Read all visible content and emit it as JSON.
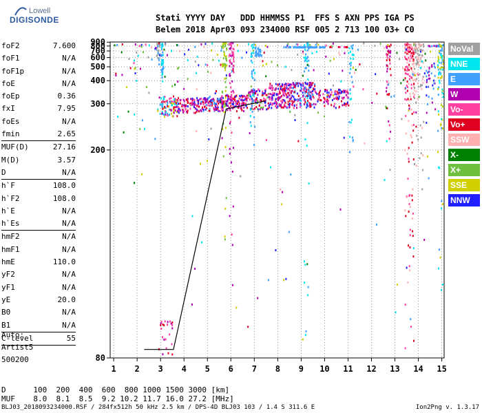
{
  "logo": {
    "line1": "Lowell",
    "line2": "DIGISONDE"
  },
  "header": {
    "line1": "Stati YYYY DAY   DDD HHMMSS P1  FFS S AXN PPS IGA PS",
    "line2": "Belem 2018 Apr03 093 234000 RSF 005 2 713 100 03+ C0"
  },
  "params_group1": [
    {
      "name": "foF2",
      "value": "7.600"
    },
    {
      "name": "foF1",
      "value": "N/A"
    },
    {
      "name": "foF1p",
      "value": "N/A"
    },
    {
      "name": "foE",
      "value": "N/A"
    },
    {
      "name": "foEp",
      "value": "0.36"
    },
    {
      "name": "fxI",
      "value": "7.95"
    },
    {
      "name": "foEs",
      "value": "N/A"
    },
    {
      "name": "fmin",
      "value": "2.65"
    }
  ],
  "params_group2": [
    {
      "name": "MUF(D)",
      "value": "27.16"
    },
    {
      "name": "M(D)",
      "value": "3.57"
    },
    {
      "name": "D",
      "value": "N/A"
    }
  ],
  "params_group3": [
    {
      "name": "h`F",
      "value": "108.0"
    },
    {
      "name": "h`F2",
      "value": "108.0"
    },
    {
      "name": "h`E",
      "value": "N/A"
    },
    {
      "name": "h`Es",
      "value": "N/A"
    }
  ],
  "params_group4": [
    {
      "name": "hmF2",
      "value": "N/A"
    },
    {
      "name": "hmF1",
      "value": "N/A"
    },
    {
      "name": "hmE",
      "value": "110.0"
    },
    {
      "name": "yF2",
      "value": "N/A"
    },
    {
      "name": "yF1",
      "value": "N/A"
    },
    {
      "name": "yE",
      "value": "20.0"
    },
    {
      "name": "B0",
      "value": "N/A"
    },
    {
      "name": "B1",
      "value": "N/A"
    }
  ],
  "params_group5": [
    {
      "name": "C-level",
      "value": "55"
    }
  ],
  "auto": {
    "l1": "Auto:",
    "l2": "Artist5",
    "l3": "500200"
  },
  "footer": {
    "d_line": "D      100  200  400  600  800 1000 1500 3000 [km]",
    "muf_line": "MUF    8.0  8.1  8.5  9.2 10.2 11.7 16.0 27.2 [MHz]"
  },
  "bottom_line": "BLJ03_2018093234000.RSF / 284fx512h 50 kHz 2.5 km / DPS-4D BLJ03 103 / 1.4 S 311.6 E",
  "version": "Ion2Png v. 1.3.17",
  "legend": [
    {
      "label": "NoVal",
      "color": "#a0a0a0"
    },
    {
      "label": "NNE",
      "color": "#00e5ee"
    },
    {
      "label": "E",
      "color": "#3fa0ff"
    },
    {
      "label": "W",
      "color": "#b000b0"
    },
    {
      "label": "Vo-",
      "color": "#ff40a0"
    },
    {
      "label": "Vo+",
      "color": "#e00020"
    },
    {
      "label": "SSW",
      "color": "#ffb0b0"
    },
    {
      "label": "X-",
      "color": "#008000"
    },
    {
      "label": "X+",
      "color": "#70c040"
    },
    {
      "label": "SSE",
      "color": "#d0d000"
    },
    {
      "label": "NNW",
      "color": "#2020ff"
    }
  ],
  "chart_data": {
    "type": "scatter",
    "x_ticks": [
      1,
      2,
      3,
      4,
      5,
      6,
      7,
      8,
      9,
      10,
      11,
      12,
      13,
      14,
      15
    ],
    "y_ticks": [
      80,
      200,
      300,
      400,
      500,
      600,
      700,
      800,
      900
    ],
    "xlim": [
      0.85,
      15.1
    ],
    "ylim": [
      80,
      905
    ],
    "y_scale": "reciprocal",
    "grid": true,
    "trace": {
      "x": [
        2.3,
        3.55,
        5.8,
        7.5
      ],
      "y": [
        82,
        82,
        284,
        310
      ]
    },
    "clusters": [
      {
        "x0": 2.85,
        "x1": 3.7,
        "y0": 265,
        "y1": 330,
        "n": 90,
        "color_set": [
          3,
          4,
          5,
          9,
          1,
          2
        ]
      },
      {
        "x0": 3.7,
        "x1": 4.6,
        "y0": 275,
        "y1": 325,
        "n": 80,
        "color_set": [
          3,
          4,
          5,
          10
        ]
      },
      {
        "x0": 4.6,
        "x1": 5.5,
        "y0": 280,
        "y1": 325,
        "n": 90,
        "color_set": [
          3,
          4,
          5,
          10,
          2
        ]
      },
      {
        "x0": 5.5,
        "x1": 6.7,
        "y0": 280,
        "y1": 335,
        "n": 130,
        "color_set": [
          3,
          4,
          5,
          10
        ]
      },
      {
        "x0": 6.7,
        "x1": 7.6,
        "y0": 285,
        "y1": 360,
        "n": 90,
        "color_set": [
          3,
          4,
          5,
          10,
          8
        ]
      },
      {
        "x0": 7.6,
        "x1": 8.6,
        "y0": 290,
        "y1": 390,
        "n": 160,
        "color_set": [
          3,
          4,
          5,
          10
        ]
      },
      {
        "x0": 8.6,
        "x1": 9.6,
        "y0": 290,
        "y1": 395,
        "n": 150,
        "color_set": [
          3,
          4,
          5,
          10,
          2
        ]
      },
      {
        "x0": 9.6,
        "x1": 11.0,
        "y0": 290,
        "y1": 360,
        "n": 100,
        "color_set": [
          3,
          4,
          5,
          10
        ]
      },
      {
        "x0": 2.9,
        "x1": 3.5,
        "y0": 80,
        "y1": 90,
        "n": 25,
        "color_set": [
          4,
          5,
          3
        ]
      },
      {
        "x0": 8.2,
        "x1": 10.0,
        "y0": 788,
        "y1": 800,
        "n": 70,
        "color_set": [
          2
        ]
      },
      {
        "x0": 14.4,
        "x1": 15.1,
        "y0": 815,
        "y1": 830,
        "n": 25,
        "color_set": [
          2,
          3
        ]
      },
      {
        "x0": 10.2,
        "x1": 11.0,
        "y0": 795,
        "y1": 802,
        "n": 15,
        "color_set": [
          5,
          4
        ]
      },
      {
        "x0": 3.0,
        "x1": 3.1,
        "y0": 400,
        "y1": 890,
        "n": 40,
        "color_set": [
          1,
          2
        ]
      },
      {
        "x0": 2.8,
        "x1": 2.95,
        "y0": 500,
        "y1": 895,
        "n": 25,
        "color_set": [
          2,
          0
        ]
      },
      {
        "x0": 5.9,
        "x1": 6.1,
        "y0": 100,
        "y1": 900,
        "n": 70,
        "color_set": [
          3,
          4
        ]
      },
      {
        "x0": 5.6,
        "x1": 5.8,
        "y0": 100,
        "y1": 900,
        "n": 60,
        "color_set": [
          9,
          8
        ]
      },
      {
        "x0": 6.8,
        "x1": 7.0,
        "y0": 200,
        "y1": 900,
        "n": 40,
        "color_set": [
          1,
          2
        ]
      },
      {
        "x0": 7.0,
        "x1": 7.3,
        "y0": 620,
        "y1": 795,
        "n": 30,
        "color_set": [
          2
        ]
      },
      {
        "x0": 9.1,
        "x1": 9.3,
        "y0": 80,
        "y1": 900,
        "n": 45,
        "color_set": [
          1,
          2
        ]
      },
      {
        "x0": 11.0,
        "x1": 11.2,
        "y0": 200,
        "y1": 900,
        "n": 30,
        "color_set": [
          2,
          1
        ]
      },
      {
        "x0": 12.6,
        "x1": 12.8,
        "y0": 200,
        "y1": 900,
        "n": 40,
        "color_set": [
          3,
          4,
          5
        ]
      },
      {
        "x0": 13.4,
        "x1": 13.8,
        "y0": 80,
        "y1": 900,
        "n": 160,
        "color_set": [
          6,
          4,
          5
        ]
      },
      {
        "x0": 13.8,
        "x1": 14.2,
        "y0": 150,
        "y1": 900,
        "n": 90,
        "color_set": [
          6,
          0
        ]
      },
      {
        "x0": 14.8,
        "x1": 15.05,
        "y0": 80,
        "y1": 900,
        "n": 90,
        "color_set": [
          9,
          2,
          1
        ]
      },
      {
        "x0": 14.3,
        "x1": 14.7,
        "y0": 250,
        "y1": 560,
        "n": 35,
        "color_set": [
          2,
          10,
          3
        ]
      },
      {
        "x0": 1.0,
        "x1": 14.5,
        "y0": 80,
        "y1": 900,
        "n": 260,
        "color_set": [
          0,
          1,
          2,
          3,
          4,
          5,
          6,
          7,
          8,
          9,
          10
        ]
      }
    ]
  }
}
